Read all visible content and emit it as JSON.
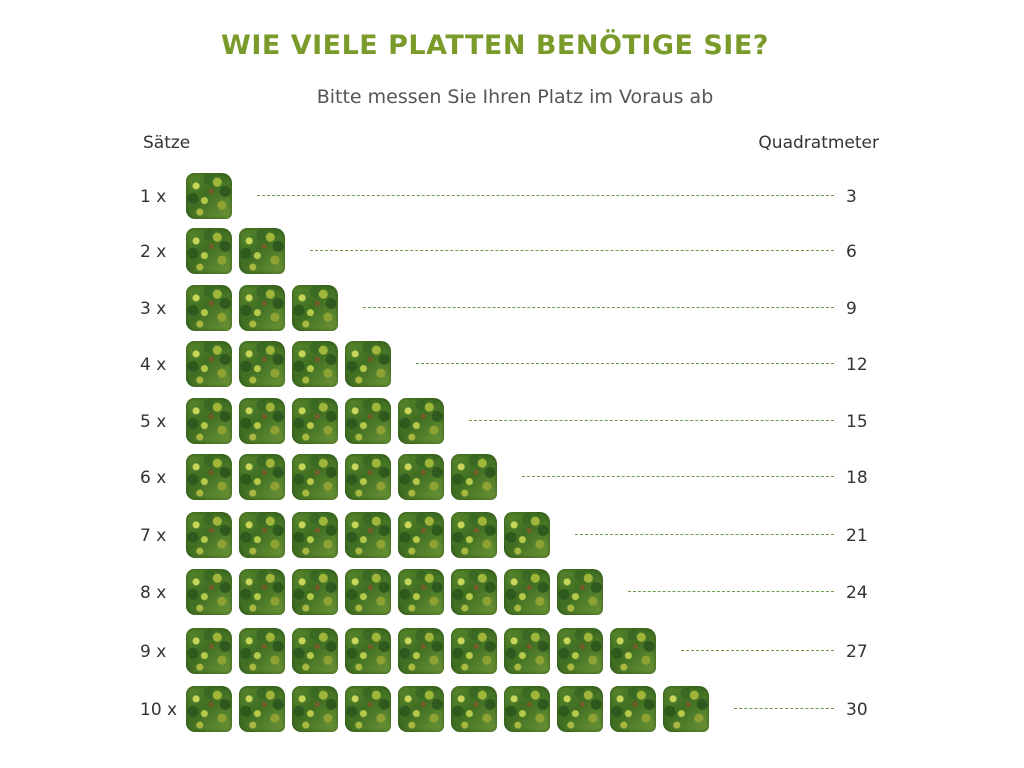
{
  "header": {
    "title": "WIE VIELE PLATTEN BENÖTIGE SIE?",
    "subtitle": "Bitte messen Sie Ihren Platz im Voraus ab",
    "left_column_label": "Sätze",
    "right_column_label": "Quadratmeter"
  },
  "colors": {
    "title": "#7a9a2a",
    "dashes": "#6e9a4a",
    "panel_icon": "green-wall-panel"
  },
  "rows": [
    {
      "count_label": "1 x",
      "panels": 1,
      "sqm": "3"
    },
    {
      "count_label": "2 x",
      "panels": 2,
      "sqm": "6"
    },
    {
      "count_label": "3 x",
      "panels": 3,
      "sqm": "9"
    },
    {
      "count_label": "4 x",
      "panels": 4,
      "sqm": "12"
    },
    {
      "count_label": "5 x",
      "panels": 5,
      "sqm": "15"
    },
    {
      "count_label": "6 x",
      "panels": 6,
      "sqm": "18"
    },
    {
      "count_label": "7 x",
      "panels": 7,
      "sqm": "21"
    },
    {
      "count_label": "8 x",
      "panels": 8,
      "sqm": "24"
    },
    {
      "count_label": "9 x",
      "panels": 9,
      "sqm": "27"
    },
    {
      "count_label": "10 x",
      "panels": 10,
      "sqm": "30"
    }
  ]
}
